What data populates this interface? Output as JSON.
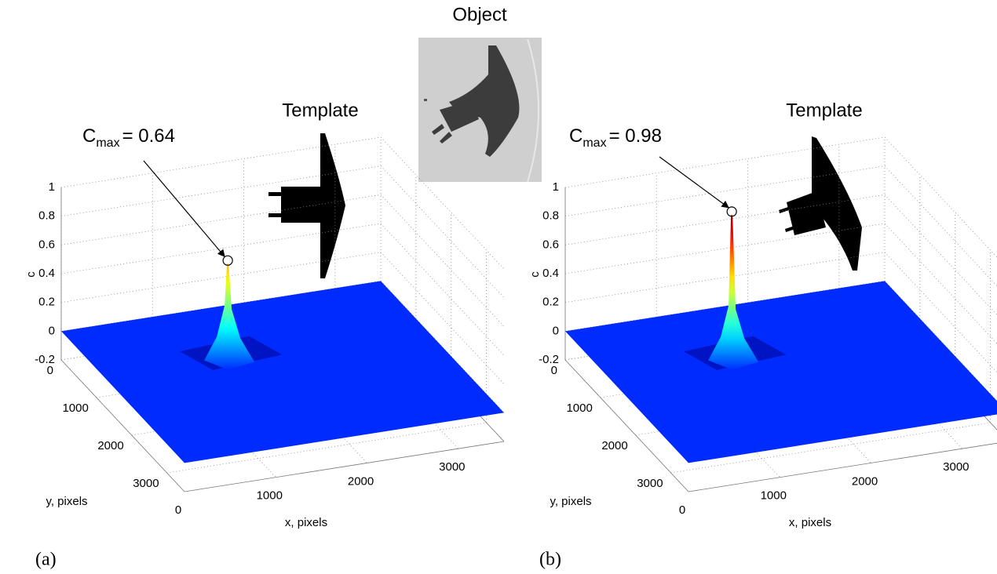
{
  "header": {
    "title": "Object"
  },
  "chart_data": [
    {
      "type": "surface3d",
      "panel_label": "(a)",
      "inset_title": "Template",
      "xlabel": "x, pixels",
      "ylabel": "y, pixels",
      "zlabel": "c",
      "xlim": [
        0,
        3500
      ],
      "ylim": [
        0,
        3500
      ],
      "zlim": [
        -0.2,
        1
      ],
      "xticks": [
        0,
        1000,
        2000,
        3000
      ],
      "yticks": [
        0,
        1000,
        2000,
        3000
      ],
      "zticks": [
        -0.2,
        0,
        0.2,
        0.4,
        0.6,
        0.8,
        1
      ],
      "grid": true,
      "colormap": "jet",
      "base_level": 0,
      "annotation": {
        "symbol": "C",
        "subscript": "max",
        "label": "= 0.64",
        "value": 0.64,
        "x": 1400,
        "y": 1100
      }
    },
    {
      "type": "surface3d",
      "panel_label": "(b)",
      "inset_title": "Template",
      "xlabel": "x, pixels",
      "ylabel": "y, pixels",
      "zlabel": "c",
      "xlim": [
        0,
        3500
      ],
      "ylim": [
        0,
        3500
      ],
      "zlim": [
        -0.2,
        1
      ],
      "xticks": [
        0,
        1000,
        2000,
        3000
      ],
      "yticks": [
        0,
        1000,
        2000,
        3000
      ],
      "zticks": [
        -0.2,
        0,
        0.2,
        0.4,
        0.6,
        0.8,
        1
      ],
      "grid": true,
      "colormap": "jet",
      "base_level": 0,
      "annotation": {
        "symbol": "C",
        "subscript": "max",
        "label": "= 0.98",
        "value": 0.98,
        "x": 1400,
        "y": 1100
      }
    }
  ]
}
